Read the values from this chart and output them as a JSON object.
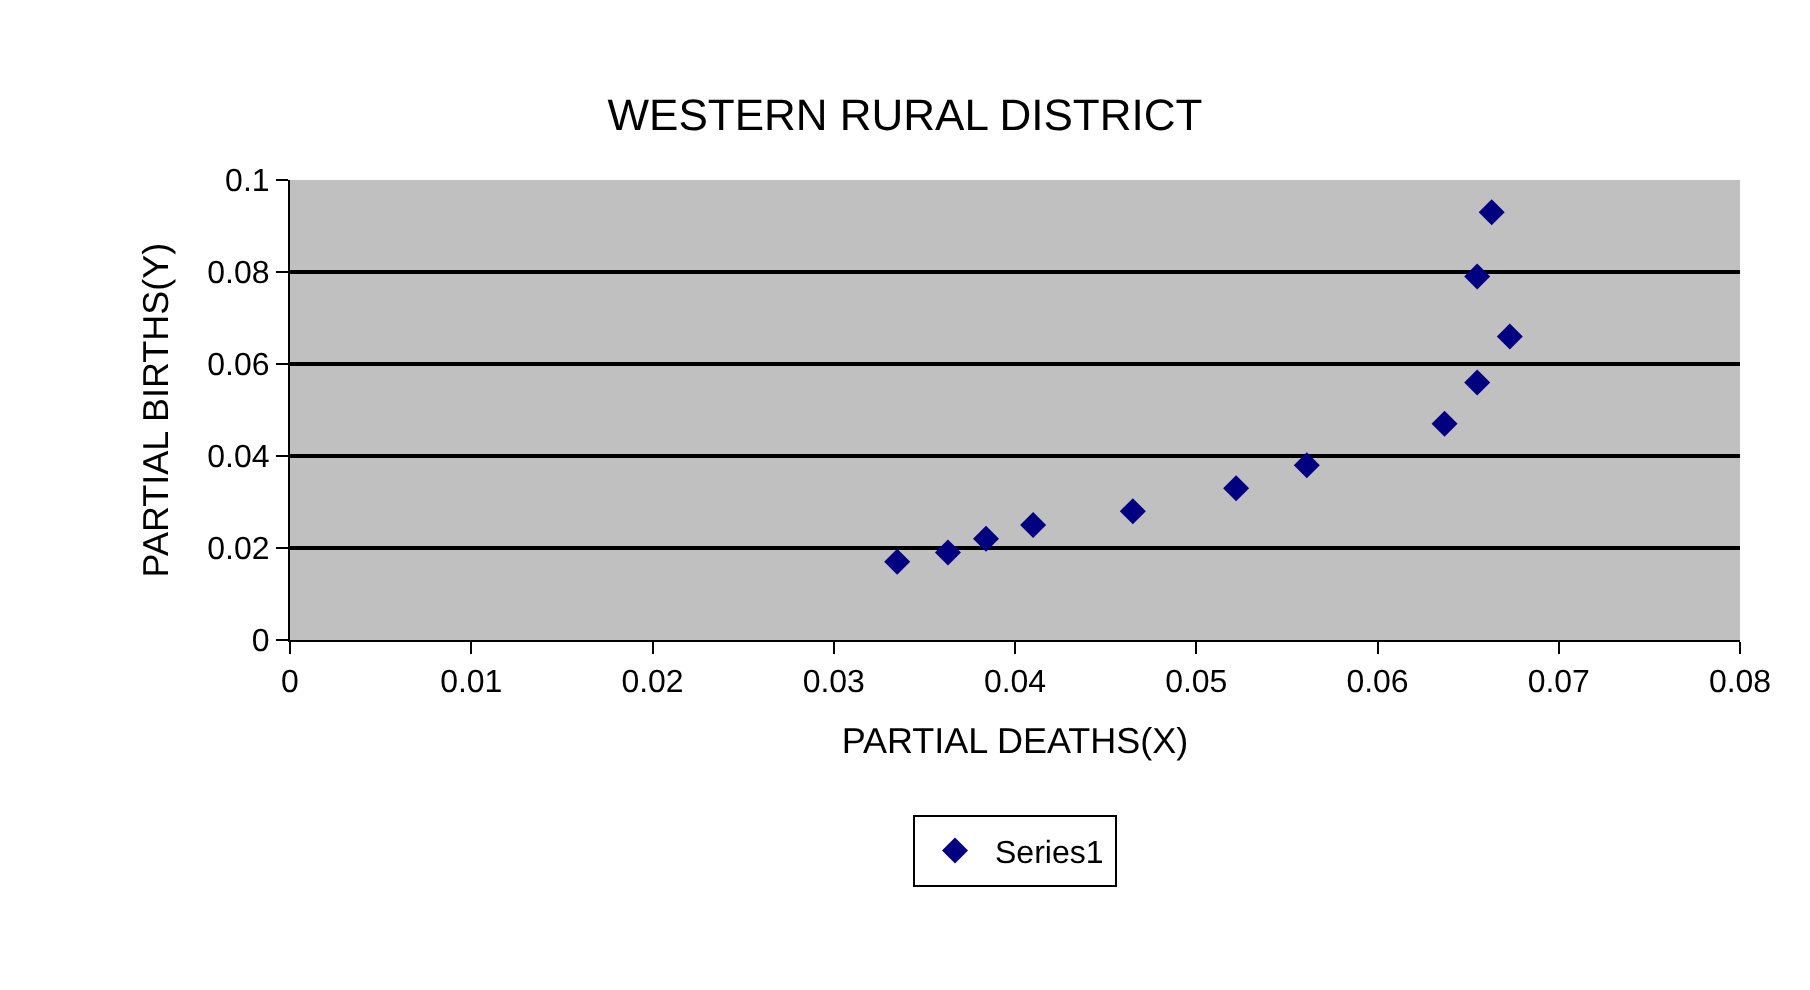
{
  "chart_data": {
    "type": "scatter",
    "title": "WESTERN RURAL DISTRICT",
    "xlabel": "PARTIAL DEATHS(X)",
    "ylabel": "PARTIAL BIRTHS(Y)",
    "x": [
      0.0335,
      0.0363,
      0.0384,
      0.041,
      0.0465,
      0.0522,
      0.0561,
      0.0637,
      0.0655,
      0.0655,
      0.0663,
      0.0673
    ],
    "series": [
      {
        "name": "Series1",
        "color": "#000080",
        "values": [
          0.017,
          0.019,
          0.022,
          0.025,
          0.028,
          0.033,
          0.038,
          0.047,
          0.056,
          0.079,
          0.093,
          0.066
        ]
      }
    ],
    "xlim": [
      0,
      0.08
    ],
    "xticks": [
      0,
      0.01,
      0.02,
      0.03,
      0.04,
      0.05,
      0.06,
      0.07,
      0.08
    ],
    "ylim": [
      0,
      0.1
    ],
    "yticks": [
      0,
      0.02,
      0.04,
      0.06,
      0.08,
      0.1
    ],
    "grid": "y",
    "legend": "bottom",
    "marker": "diamond"
  }
}
